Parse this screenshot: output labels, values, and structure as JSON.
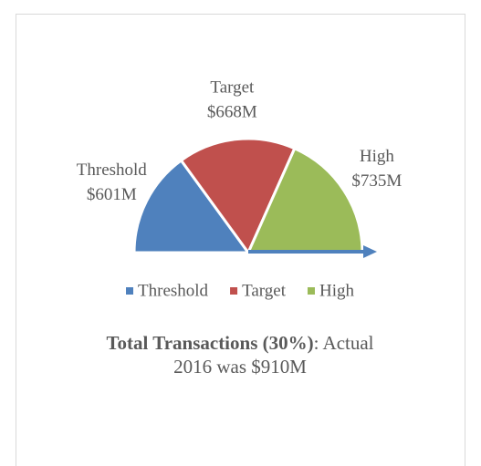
{
  "chart_data": {
    "type": "half-pie",
    "categories": [
      "Threshold",
      "Target",
      "High"
    ],
    "values": [
      601,
      668,
      735
    ],
    "value_labels": [
      "$601M",
      "$668M",
      "$735M"
    ],
    "colors": [
      "#4f81bd",
      "#c0504d",
      "#9bbb59"
    ],
    "legend": "bottom",
    "title": "Total Transactions (30%)",
    "subtitle": ": Actual 2016 was $910M"
  }
}
